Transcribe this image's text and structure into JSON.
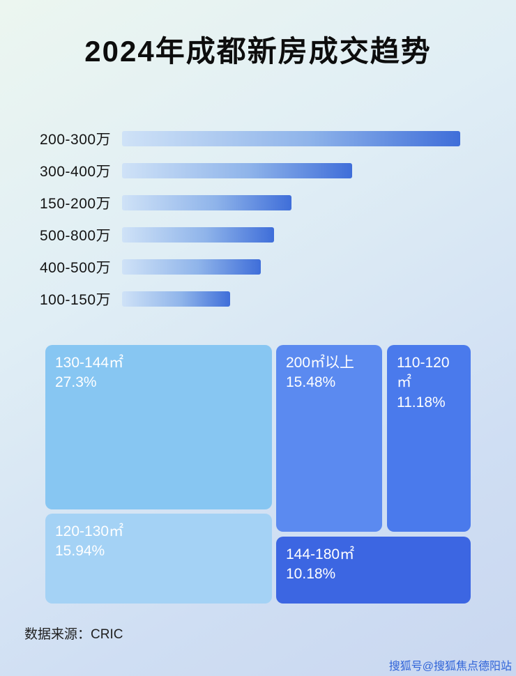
{
  "title": "2024年成都新房成交趋势",
  "colors": {
    "bar_gradient_start": "#cfe2f7",
    "bar_gradient_end": "#3f6ed9",
    "background_top": "#ecf6f0",
    "background_bottom": "#c9d7f0",
    "watermark_blue": "#2f63d8"
  },
  "chart_data": [
    {
      "type": "bar",
      "orientation": "horizontal",
      "title": "2024年成都新房成交趋势",
      "categories": [
        "200-300万",
        "300-400万",
        "150-200万",
        "500-800万",
        "400-500万",
        "100-150万"
      ],
      "values": [
        100,
        68,
        50,
        45,
        41,
        32
      ],
      "xlabel": "",
      "ylabel": "",
      "axis_labels_shown": false,
      "items": [
        {
          "label": "200-300万",
          "width": "100%"
        },
        {
          "label": "300-400万",
          "width": "68%"
        },
        {
          "label": "150-200万",
          "width": "50%"
        },
        {
          "label": "500-800万",
          "width": "45%"
        },
        {
          "label": "400-500万",
          "width": "41%"
        },
        {
          "label": "100-150万",
          "width": "32%"
        }
      ]
    },
    {
      "type": "treemap",
      "items": [
        {
          "label": "130-144㎡",
          "value": "27.3%",
          "color": "#87c6f2"
        },
        {
          "label": "120-130㎡",
          "value": "15.94%",
          "color": "#a4d2f5"
        },
        {
          "label": "200㎡以上",
          "value": "15.48%",
          "color": "#5b8af0"
        },
        {
          "label": "110-120㎡",
          "value": "11.18%",
          "color": "#4a7aec"
        },
        {
          "label": "144-180㎡",
          "value": "10.18%",
          "color": "#3c66e2"
        }
      ]
    }
  ],
  "footer": {
    "source_label": "数据来源：CRIC"
  },
  "watermark": "搜狐号@搜狐焦点德阳站"
}
